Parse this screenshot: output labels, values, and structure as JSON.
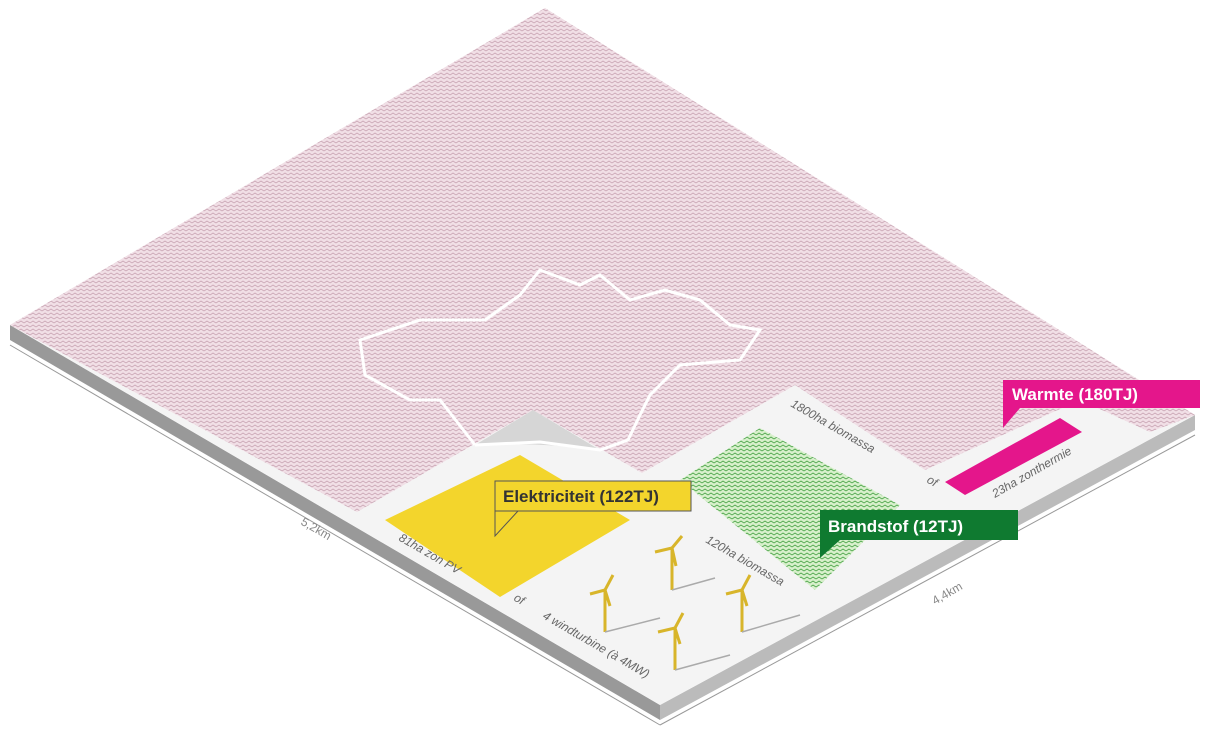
{
  "labels": {
    "heat": "Warmte (180TJ)",
    "electricity": "Elektriciteit (122TJ)",
    "fuel": "Brandstof (12TJ)",
    "biomass_large": "1800ha biomassa",
    "or_heat": "of",
    "solar_thermal": "23ha zonthermie",
    "solar_pv": "81ha zon PV",
    "or_wind": "of",
    "wind": "4 windturbine (à 4MW)",
    "biomass_small": "120ha biomassa",
    "width": "5,2km",
    "depth": "4,4km"
  }
}
